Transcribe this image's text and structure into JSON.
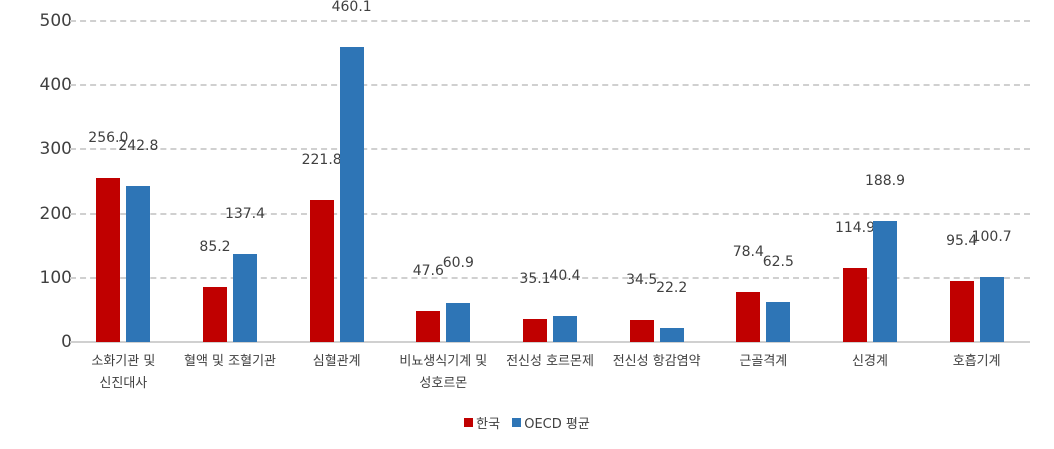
{
  "chart_data": {
    "type": "bar",
    "title": "",
    "xlabel": "",
    "ylabel": "",
    "ylim": [
      0,
      500
    ],
    "yticks": [
      0,
      100,
      200,
      300,
      400,
      500
    ],
    "grid": true,
    "legend_position": "bottom",
    "categories": [
      "소화기관 및 신진대사",
      "혈액 및 조혈기관",
      "심혈관계",
      "비뇨생식기계 및 성호르몬",
      "전신성 호르몬제",
      "전신성 항감염약",
      "근골격계",
      "신경계",
      "호흡기계"
    ],
    "category_lines": [
      [
        "소화기관 및",
        "신진대사"
      ],
      [
        "혈액 및 조혈기관"
      ],
      [
        "심혈관계"
      ],
      [
        "비뇨생식기계 및",
        "성호르몬"
      ],
      [
        "전신성 호르몬제"
      ],
      [
        "전신성 항감염약"
      ],
      [
        "근골격계"
      ],
      [
        "신경계"
      ],
      [
        "호흡기계"
      ]
    ],
    "series": [
      {
        "name": "한국",
        "color": "#C00000",
        "values": [
          256.0,
          85.2,
          221.8,
          47.6,
          35.1,
          34.5,
          78.4,
          114.9,
          95.4
        ]
      },
      {
        "name": "OECD 평균",
        "color": "#2E75B6",
        "values": [
          242.8,
          137.4,
          460.1,
          60.9,
          40.4,
          22.2,
          62.5,
          188.9,
          100.7
        ]
      }
    ]
  },
  "legend": {
    "items": [
      "한국",
      "OECD 평균"
    ]
  }
}
